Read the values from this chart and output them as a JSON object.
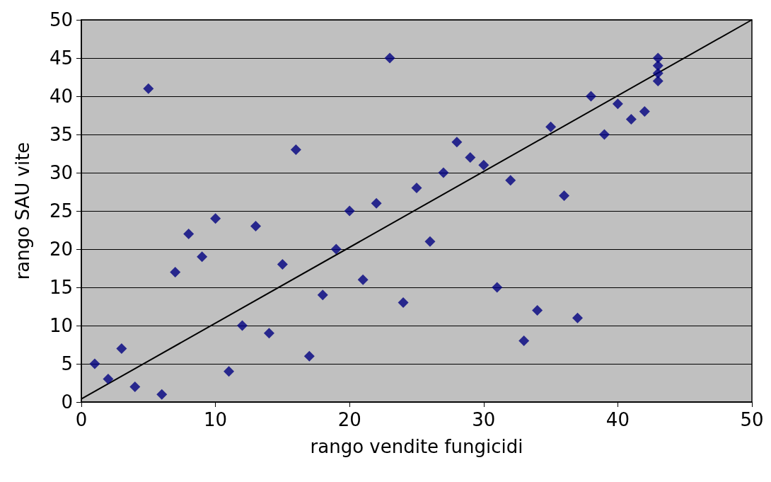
{
  "chart_data": {
    "type": "scatter",
    "xlabel": "rango vendite fungicidi",
    "ylabel": "rango SAU vite",
    "xlim": [
      0,
      50
    ],
    "ylim": [
      0,
      50
    ],
    "xticks": [
      0,
      10,
      20,
      30,
      40,
      50
    ],
    "yticks": [
      0,
      5,
      10,
      15,
      20,
      25,
      30,
      35,
      40,
      45,
      50
    ],
    "grid": "y",
    "marker": "diamond",
    "series": [
      {
        "color": "#000080",
        "x": [
          1,
          2,
          3,
          4,
          5,
          6,
          7,
          8,
          9,
          10,
          11,
          12,
          13,
          14,
          15,
          16,
          17,
          18,
          19,
          20,
          21,
          22,
          23,
          24,
          25,
          26,
          27,
          28,
          29,
          30,
          31,
          32,
          33,
          34,
          35,
          36,
          37,
          38,
          39,
          40,
          41,
          42,
          43,
          43,
          43,
          43
        ],
        "values": [
          5,
          3,
          7,
          2,
          41,
          1,
          17,
          22,
          19,
          24,
          4,
          10,
          23,
          9,
          18,
          33,
          6,
          14,
          20,
          25,
          16,
          26,
          45,
          13,
          28,
          21,
          30,
          34,
          32,
          31,
          15,
          29,
          8,
          12,
          36,
          27,
          11,
          40,
          35,
          39,
          37,
          38,
          45,
          44,
          43,
          42
        ]
      },
      {
        "type": "line",
        "color": "#000000",
        "marker": "none",
        "x": [
          0,
          50
        ],
        "values": [
          0.4,
          50
        ]
      }
    ]
  }
}
